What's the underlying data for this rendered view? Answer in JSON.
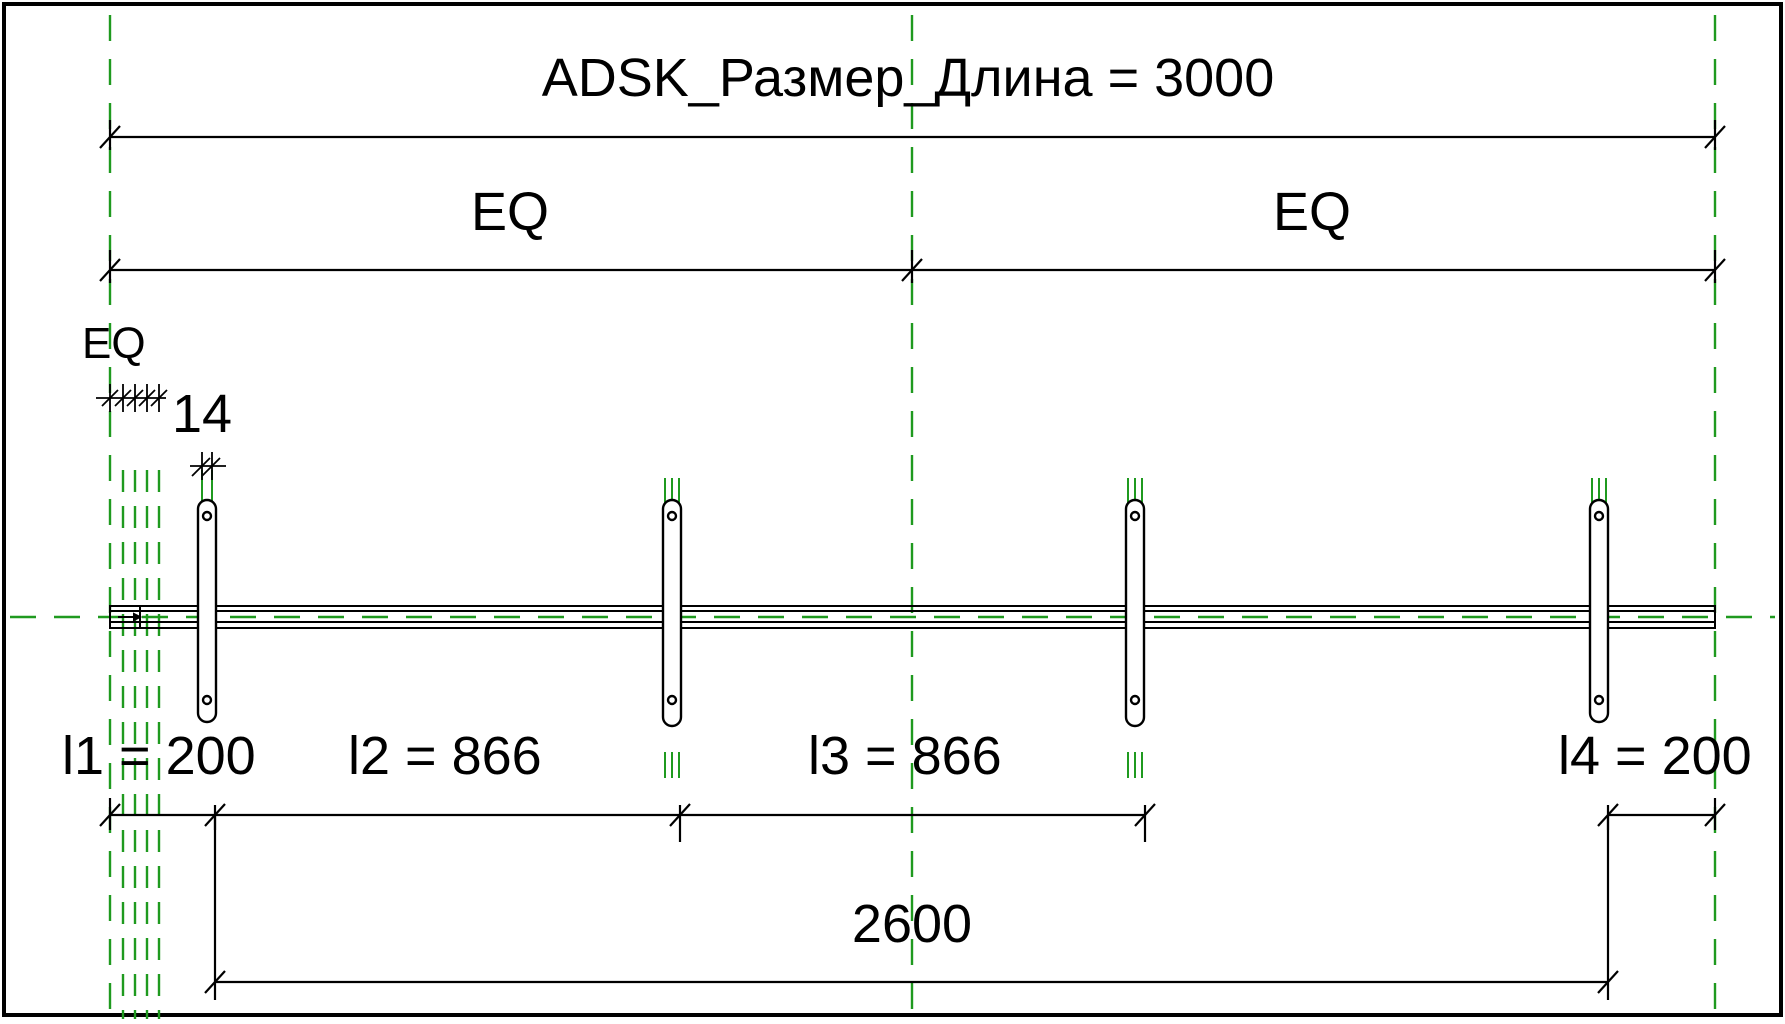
{
  "drawing": {
    "overall_dimension_label": "ADSK_Размер_Длина = 3000",
    "eq_left_label": "EQ",
    "eq_right_label": "EQ",
    "eq_small_label": "EQ",
    "small_dimension_label": "14",
    "l1_label": "l1 = 200",
    "l2_label": "l2 = 866",
    "l3_label": "l3 = 866",
    "l4_label": "l4 = 200",
    "bottom_dimension_label": "2600"
  },
  "colors": {
    "reference_line": "#1f9a1f",
    "linework": "#000000",
    "frame": "#000000",
    "background": "#ffffff"
  }
}
